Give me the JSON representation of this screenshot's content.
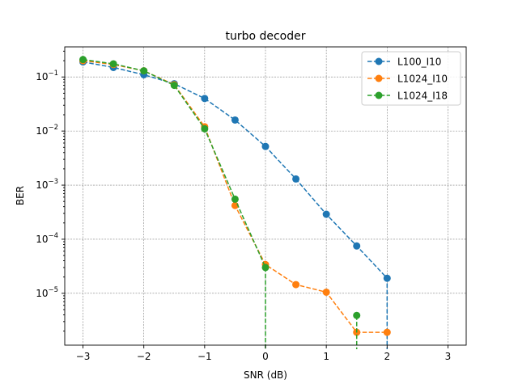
{
  "chart_data": {
    "type": "line",
    "title": "turbo decoder",
    "xlabel": "SNR (dB)",
    "ylabel": "BER",
    "xlim": [
      -3.3,
      3.3
    ],
    "ylim": [
      1.1e-06,
      0.36
    ],
    "yscale": "log",
    "grid": true,
    "legend_position": "top-right",
    "x_ticks": [
      {
        "value": -3,
        "label": "−3"
      },
      {
        "value": -2,
        "label": "−2"
      },
      {
        "value": -1,
        "label": "−1"
      },
      {
        "value": 0,
        "label": "0"
      },
      {
        "value": 1,
        "label": "1"
      },
      {
        "value": 2,
        "label": "2"
      },
      {
        "value": 3,
        "label": "3"
      }
    ],
    "y_ticks": [
      {
        "value": 1e-05,
        "base": "10",
        "exp": "−5"
      },
      {
        "value": 0.0001,
        "base": "10",
        "exp": "−4"
      },
      {
        "value": 0.001,
        "base": "10",
        "exp": "−3"
      },
      {
        "value": 0.01,
        "base": "10",
        "exp": "−2"
      },
      {
        "value": 0.1,
        "base": "10",
        "exp": "−1"
      }
    ],
    "series": [
      {
        "name": "L100_I10",
        "color": "#1f77b4",
        "x": [
          -3,
          -2.5,
          -2,
          -1.5,
          -1,
          -0.5,
          0,
          0.5,
          1,
          1.5,
          2
        ],
        "y": [
          0.19,
          0.15,
          0.11,
          0.075,
          0.04,
          0.016,
          0.0052,
          0.0013,
          0.00029,
          7.5e-05,
          1.9e-05
        ],
        "drops_to_zero_after": true
      },
      {
        "name": "L1024_I10",
        "color": "#ff7f0e",
        "x": [
          -3,
          -2.5,
          -2,
          -1.5,
          -1,
          -0.5,
          0,
          0.5,
          1,
          1.5,
          2
        ],
        "y": [
          0.2,
          0.17,
          0.13,
          0.072,
          0.012,
          0.00042,
          3.4e-05,
          1.45e-05,
          1.05e-05,
          1.9e-06,
          1.9e-06
        ],
        "drops_to_zero_after": false
      },
      {
        "name": "L1024_I18",
        "color": "#2ca02c",
        "x": [
          -3,
          -2.5,
          -2,
          -1.5,
          -1,
          -0.5,
          0,
          1.5
        ],
        "y": [
          0.21,
          0.175,
          0.13,
          0.07,
          0.011,
          0.00055,
          3e-05,
          3.9e-06
        ],
        "segments": [
          [
            0,
            6
          ],
          [
            7,
            7
          ]
        ],
        "drops_to_zero_after": true
      }
    ]
  }
}
